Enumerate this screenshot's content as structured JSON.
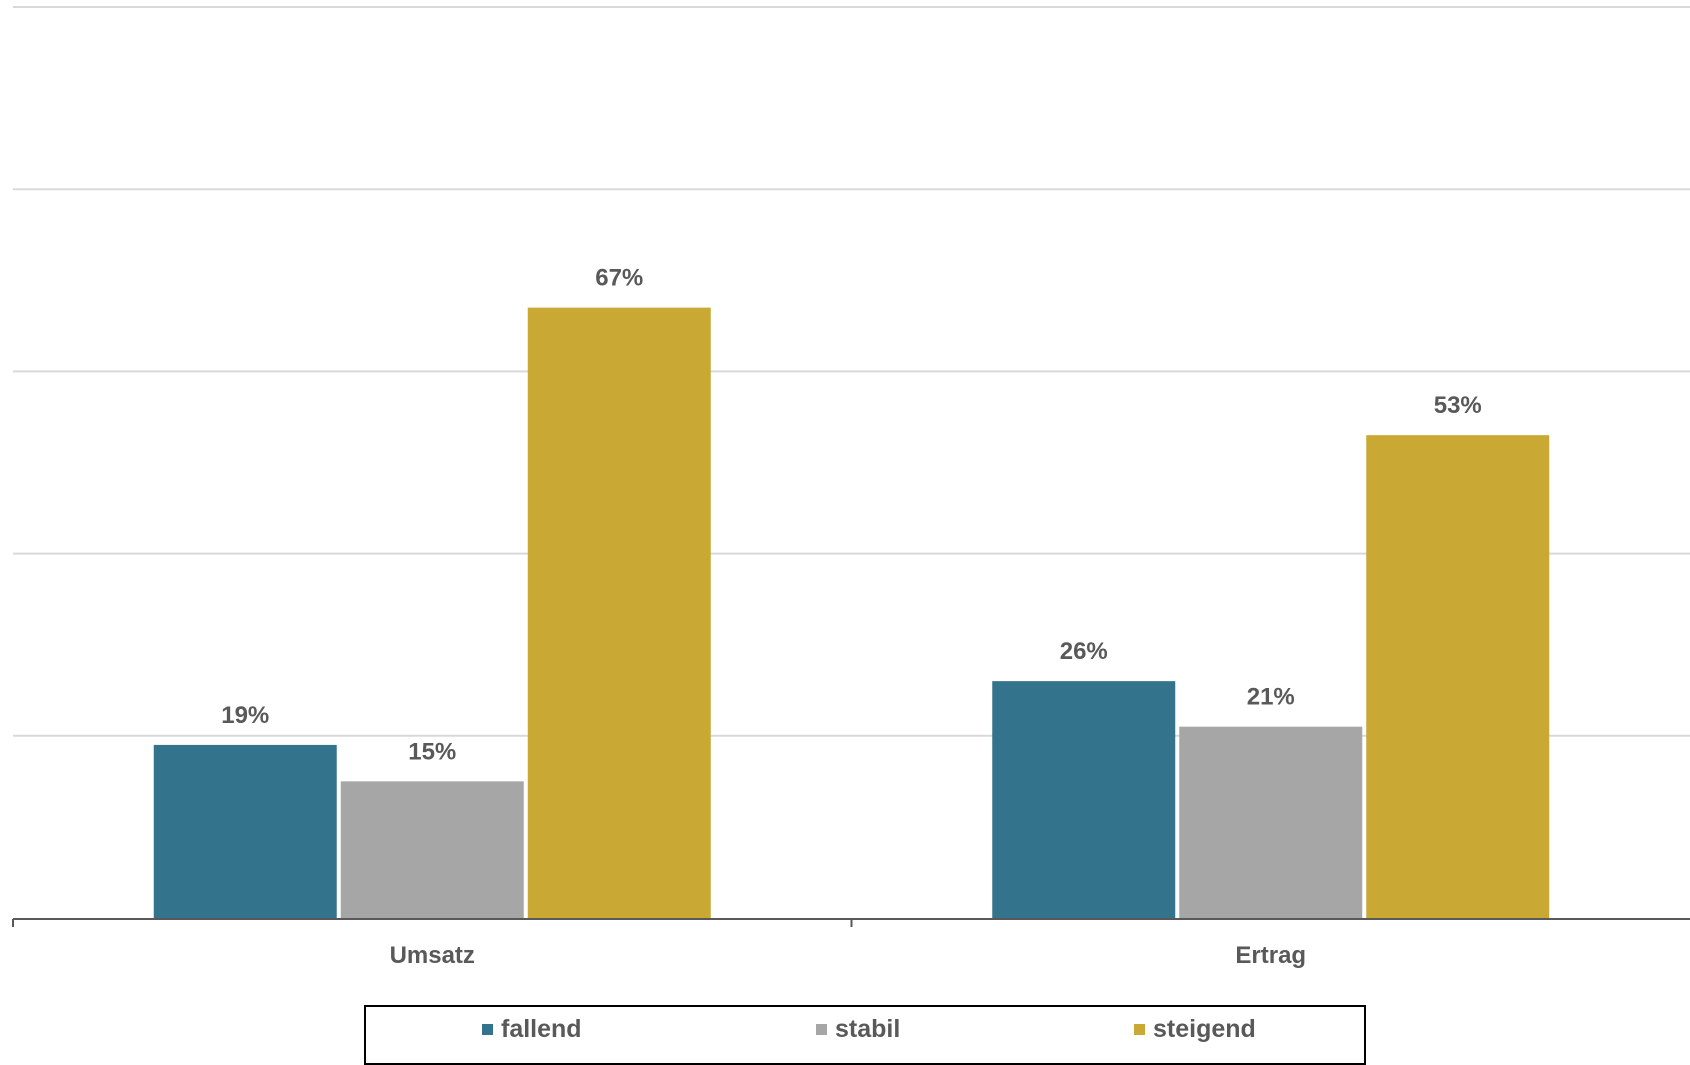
{
  "chart_data": {
    "type": "bar",
    "categories": [
      "Umsatz",
      "Ertrag"
    ],
    "series": [
      {
        "name": "fallend",
        "values": [
          19,
          26
        ],
        "labels": [
          "19%",
          "26%"
        ],
        "color": "#33738c"
      },
      {
        "name": "stabil",
        "values": [
          15,
          21
        ],
        "labels": [
          "15%",
          "21%"
        ],
        "color": "#a6a6a6"
      },
      {
        "name": "steigend",
        "values": [
          67,
          53
        ],
        "labels": [
          "67%",
          "53%"
        ],
        "color": "#c9a933"
      }
    ],
    "ylim": [
      0,
      100
    ],
    "gridlines": [
      0,
      20,
      40,
      60,
      80,
      100
    ],
    "grid": true,
    "legend": "bottom",
    "title": "",
    "xlabel": "",
    "ylabel": ""
  }
}
